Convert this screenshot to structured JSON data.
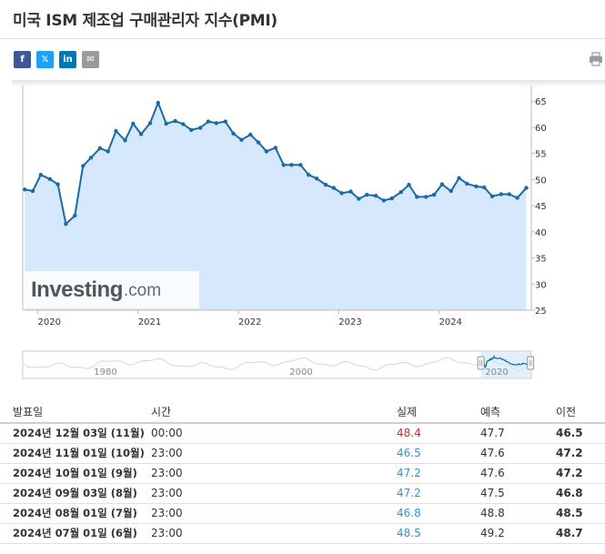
{
  "page": {
    "title": "미국 ISM 제조업 구매관리자 지수(PMI)"
  },
  "share": {
    "facebook": "f",
    "twitter": "𝕏",
    "linkedin": "in",
    "email": "✉"
  },
  "logo": {
    "main": "Investing",
    "suffix": ".com"
  },
  "chart_data": {
    "type": "area",
    "title": "미국 ISM 제조업 구매관리자 지수(PMI)",
    "color_line": "#1b6aa5",
    "color_fill": "#d6e8fb",
    "ylim": [
      25,
      68
    ],
    "y_ticks": [
      65,
      60,
      55,
      50,
      45,
      40,
      35,
      30,
      25
    ],
    "x_range": [
      2019.85,
      2024.92
    ],
    "x_ticks": [
      {
        "label": "2020",
        "x": 2020.0
      },
      {
        "label": "2021",
        "x": 2021.0
      },
      {
        "label": "2022",
        "x": 2022.0
      },
      {
        "label": "2023",
        "x": 2023.0
      },
      {
        "label": "2024",
        "x": 2024.0
      }
    ],
    "x": [
      2019.87,
      2019.95,
      2020.03,
      2020.12,
      2020.2,
      2020.28,
      2020.37,
      2020.45,
      2020.53,
      2020.62,
      2020.7,
      2020.78,
      2020.87,
      2020.95,
      2021.03,
      2021.12,
      2021.2,
      2021.28,
      2021.37,
      2021.45,
      2021.53,
      2021.62,
      2021.7,
      2021.78,
      2021.87,
      2021.95,
      2022.03,
      2022.12,
      2022.2,
      2022.28,
      2022.37,
      2022.45,
      2022.53,
      2022.62,
      2022.7,
      2022.78,
      2022.87,
      2022.95,
      2023.03,
      2023.12,
      2023.2,
      2023.28,
      2023.37,
      2023.45,
      2023.53,
      2023.62,
      2023.7,
      2023.78,
      2023.87,
      2023.95,
      2024.03,
      2024.12,
      2024.2,
      2024.28,
      2024.37,
      2024.45,
      2024.53,
      2024.62,
      2024.7,
      2024.78,
      2024.87
    ],
    "values": [
      48.1,
      47.8,
      50.9,
      50.1,
      49.1,
      41.5,
      43.1,
      52.6,
      54.2,
      56.0,
      55.4,
      59.3,
      57.5,
      60.7,
      58.7,
      60.8,
      64.7,
      60.7,
      61.2,
      60.6,
      59.5,
      59.9,
      61.1,
      60.8,
      61.1,
      58.8,
      57.6,
      58.6,
      57.1,
      55.4,
      56.1,
      52.8,
      52.8,
      52.8,
      50.9,
      50.2,
      49.0,
      48.4,
      47.4,
      47.7,
      46.3,
      47.1,
      46.9,
      46.0,
      46.4,
      47.6,
      49.0,
      46.7,
      46.7,
      47.1,
      49.1,
      47.8,
      50.3,
      49.2,
      48.7,
      48.5,
      46.8,
      47.2,
      47.2,
      46.5,
      48.4
    ],
    "navigator": {
      "labels": [
        {
          "label": "1980",
          "x": 1980
        },
        {
          "label": "2000",
          "x": 2000
        },
        {
          "label": "2020",
          "x": 2020
        }
      ],
      "x_range": [
        1973,
        2025
      ],
      "selected": [
        2019.85,
        2024.92
      ]
    }
  },
  "table": {
    "headers": {
      "release": "발표일",
      "time": "시간",
      "actual": "실제",
      "forecast": "예측",
      "previous": "이전"
    },
    "rows": [
      {
        "release": "2024년 12월 03일 (11월)",
        "time": "00:00",
        "actual": "48.4",
        "actual_color": "#e02020",
        "forecast": "47.7",
        "previous": "46.5"
      },
      {
        "release": "2024년 11월 01일 (10월)",
        "time": "23:00",
        "actual": "46.5",
        "actual_color": "#1e9ae0",
        "forecast": "47.6",
        "previous": "47.2"
      },
      {
        "release": "2024년 10월 01일 (9월)",
        "time": "23:00",
        "actual": "47.2",
        "actual_color": "#1e9ae0",
        "forecast": "47.6",
        "previous": "47.2"
      },
      {
        "release": "2024년 09월 03일 (8월)",
        "time": "23:00",
        "actual": "47.2",
        "actual_color": "#1e9ae0",
        "forecast": "47.5",
        "previous": "46.8"
      },
      {
        "release": "2024년 08월 01일 (7월)",
        "time": "23:00",
        "actual": "46.8",
        "actual_color": "#1e9ae0",
        "forecast": "48.8",
        "previous": "48.5"
      },
      {
        "release": "2024년 07월 01일 (6월)",
        "time": "23:00",
        "actual": "48.5",
        "actual_color": "#1e9ae0",
        "forecast": "49.2",
        "previous": "48.7"
      }
    ]
  }
}
